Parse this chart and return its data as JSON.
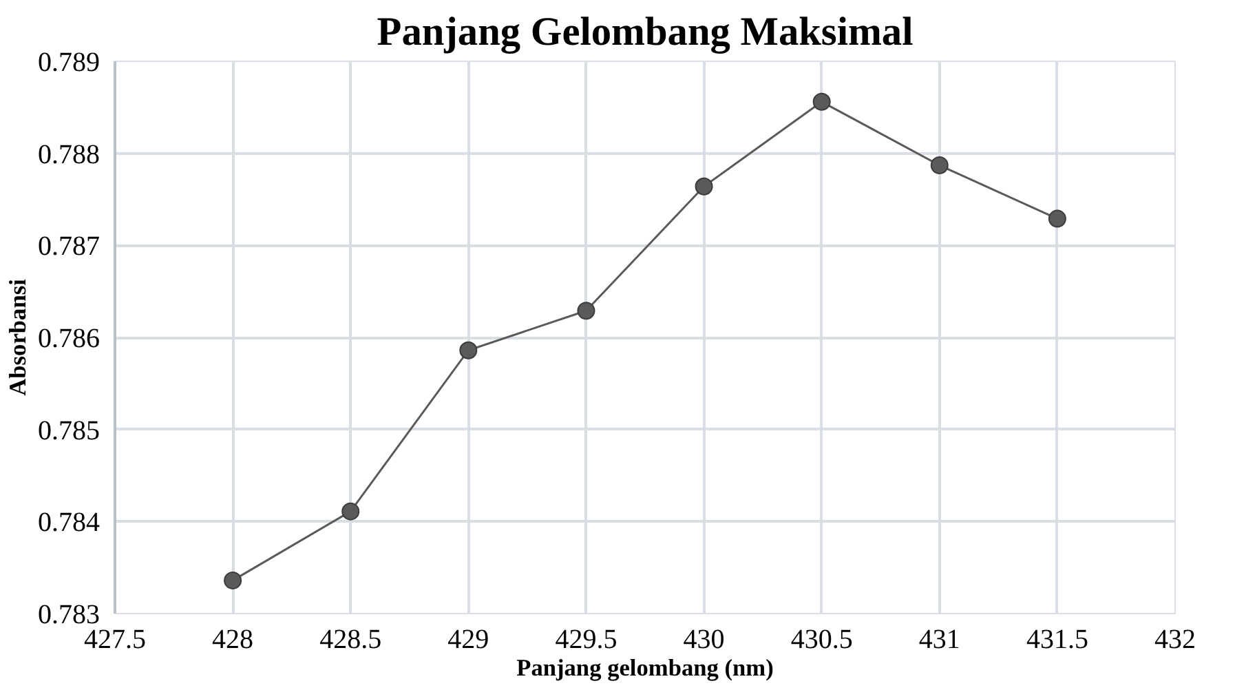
{
  "chart_data": {
    "type": "line",
    "title": "Panjang Gelombang Maksimal",
    "xlabel": "Panjang gelombang (nm)",
    "ylabel": "Absorbansi",
    "x": [
      428,
      428.5,
      429,
      429.5,
      430,
      430.5,
      431,
      431.5
    ],
    "series": [
      {
        "color": "#5a5a5a",
        "values": [
          0.78336,
          0.78411,
          0.78586,
          0.78629,
          0.78764,
          0.78856,
          0.78787,
          0.78729
        ]
      }
    ],
    "xlim": [
      427.5,
      432
    ],
    "xticks": [
      427.5,
      428,
      428.5,
      429,
      429.5,
      430,
      430.5,
      431,
      431.5,
      432
    ],
    "ylim": [
      0.783,
      0.789
    ],
    "yticks": [
      0.783,
      0.784,
      0.785,
      0.786,
      0.787,
      0.788,
      0.789
    ],
    "grid": true,
    "marker": "circle",
    "line_style": "solid"
  }
}
